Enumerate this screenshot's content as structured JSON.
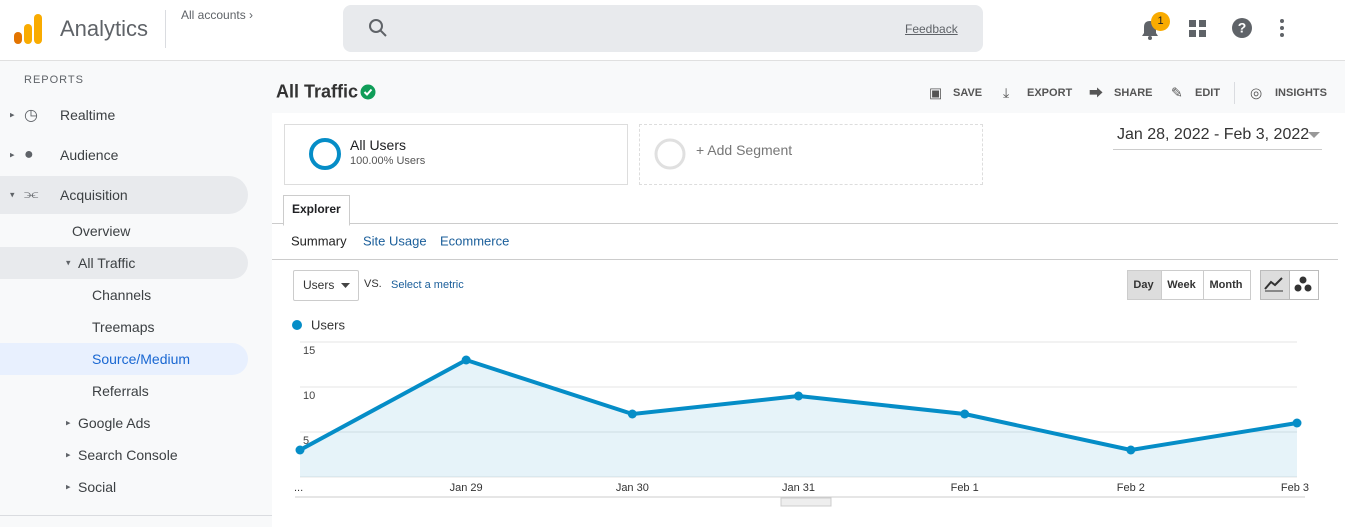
{
  "header": {
    "app_name": "Analytics",
    "breadcrumb": "All accounts",
    "feedback": "Feedback",
    "notification_count": "1"
  },
  "sidebar": {
    "section": "REPORTS",
    "items": [
      "Realtime",
      "Audience",
      "Acquisition",
      "Overview",
      "All Traffic",
      "Channels",
      "Treemaps",
      "Source/Medium",
      "Referrals",
      "Google Ads",
      "Search Console",
      "Social"
    ]
  },
  "report": {
    "title": "All Traffic",
    "actions": [
      "SAVE",
      "EXPORT",
      "SHARE",
      "EDIT",
      "INSIGHTS"
    ],
    "segment": {
      "name": "All Users",
      "detail": "100.00% Users",
      "add": "+ Add Segment"
    },
    "date_range": "Jan 28, 2022 - Feb 3, 2022",
    "tab": "Explorer",
    "subtabs": [
      "Summary",
      "Site Usage",
      "Ecommerce"
    ],
    "metric": "Users",
    "vs": "VS.",
    "select_metric": "Select a metric",
    "granularity": [
      "Day",
      "Week",
      "Month"
    ]
  },
  "chart_data": {
    "type": "line",
    "categories": [
      "...",
      "Jan 29",
      "Jan 30",
      "Jan 31",
      "Feb 1",
      "Feb 2",
      "Feb 3"
    ],
    "series": [
      {
        "name": "Users",
        "color": "#058dc7",
        "values": [
          3,
          13,
          7,
          9,
          7,
          3,
          6
        ]
      }
    ],
    "ylim": [
      0,
      15
    ],
    "yticks": [
      5,
      10,
      15
    ],
    "grid": true
  }
}
